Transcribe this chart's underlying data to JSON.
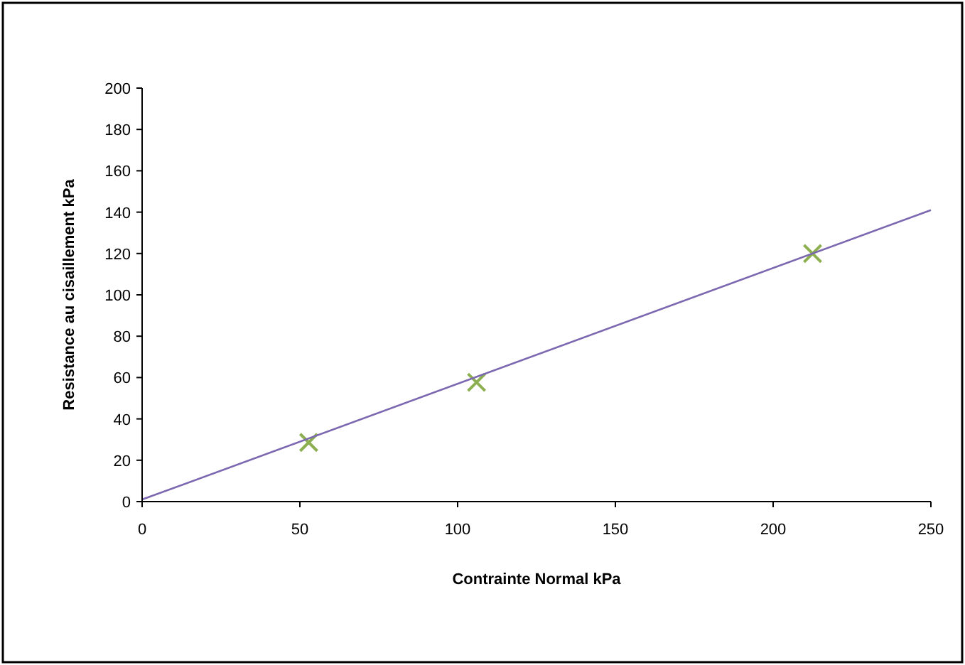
{
  "chart_data": {
    "type": "scatter",
    "xlabel": "Contrainte Normal kPa",
    "ylabel": "Resistance au cisaillement kPa",
    "series": [
      {
        "color": "#8cb050",
        "x": [
          52.8,
          106,
          212.5
        ],
        "values": [
          28.6,
          57.7,
          120
        ],
        "marker": "cross"
      },
      {
        "type": "line",
        "color": "#7b68b0",
        "x": [
          0,
          250
        ],
        "values": [
          1,
          141
        ],
        "marker": "none"
      }
    ],
    "xlim": [
      0,
      250
    ],
    "xticks": [
      0,
      50,
      100,
      150,
      200,
      250
    ],
    "ylim": [
      0,
      200
    ],
    "yticks": [
      0,
      20,
      40,
      60,
      80,
      100,
      120,
      140,
      160,
      180,
      200
    ],
    "grid": false
  }
}
